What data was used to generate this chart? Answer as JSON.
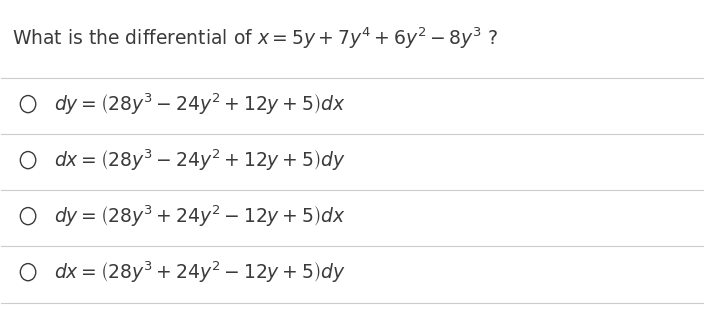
{
  "background_color": "#ffffff",
  "question": "What is the differential of $x = 5y + 7y^4 + 6y^2 - 8y^3$ ?",
  "question_fontsize": 13.5,
  "options": [
    "$dy = \\left(28y^3 - 24y^2 + 12y + 5\\right) dx$",
    "$dx = \\left(28y^3 - 24y^2 + 12y + 5\\right) dy$",
    "$dy = \\left(28y^3 + 24y^2 - 12y + 5\\right) dx$",
    "$dx = \\left(28y^3 + 24y^2 - 12y + 5\\right) dy$"
  ],
  "option_fontsize": 13.5,
  "text_color": "#3a3a3a",
  "line_color": "#cccccc",
  "circle_color": "#3a3a3a",
  "fig_width": 7.04,
  "fig_height": 3.14
}
